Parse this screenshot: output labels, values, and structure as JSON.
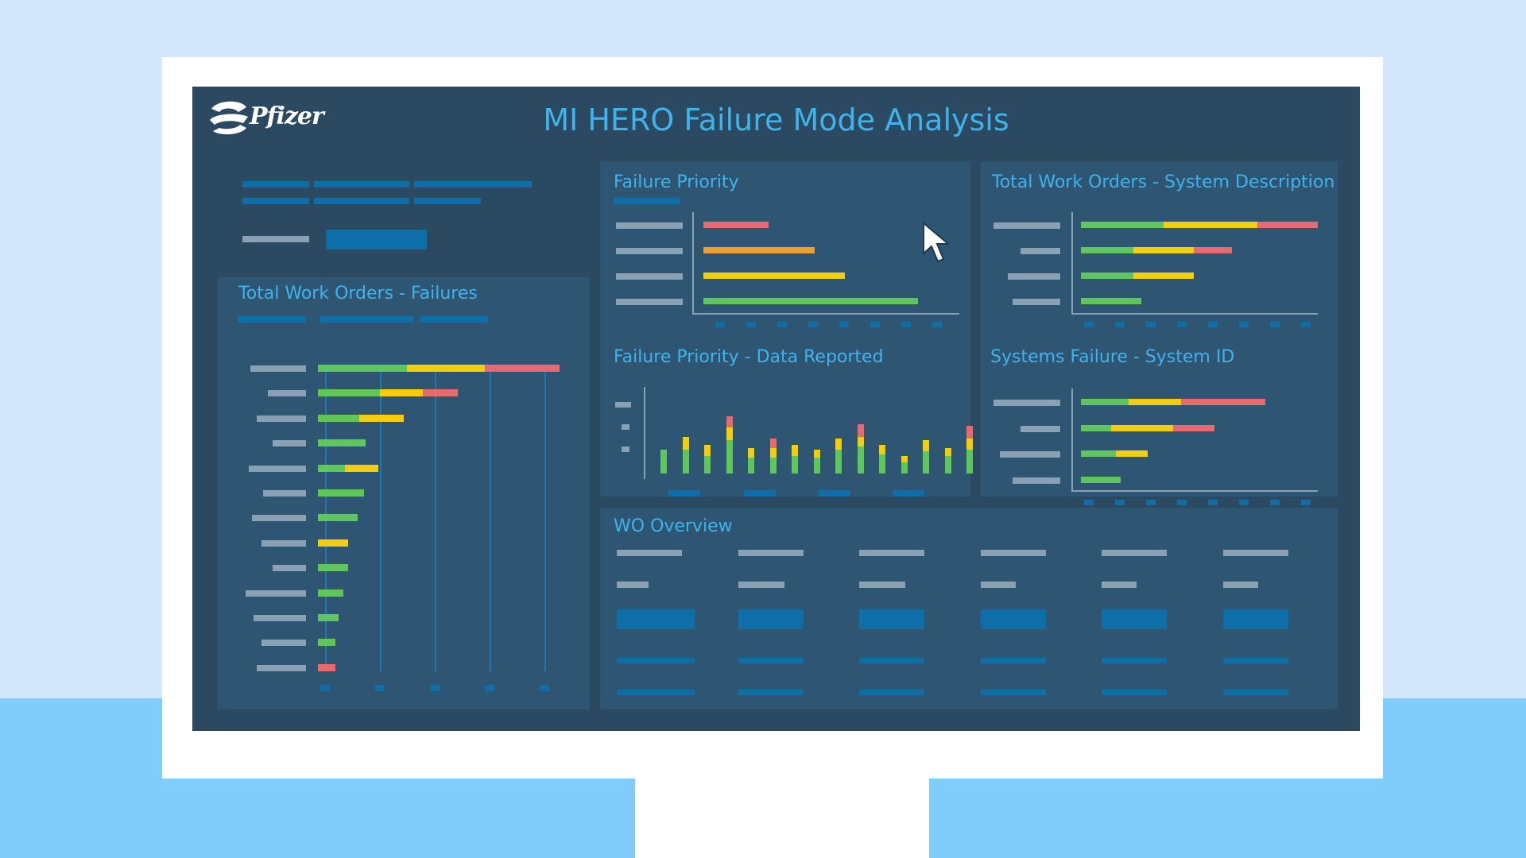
{
  "header": {
    "title": "MI HERO Failure Mode Analysis",
    "logo_text": "Pfizer"
  },
  "panels": {
    "failures": {
      "title": "Total Work Orders - Failures"
    },
    "priority": {
      "title": "Failure Priority"
    },
    "system_desc": {
      "title": "Total Work Orders - System Description"
    },
    "data_reported": {
      "title": "Failure Priority - Data Reported"
    },
    "system_id": {
      "title": "Systems Failure - System ID"
    },
    "wo_overview": {
      "title": "WO Overview"
    }
  },
  "colors": {
    "green": "#5ec65b",
    "yellow": "#f4cd0d",
    "red": "#e76b6e",
    "orange": "#f29b31",
    "placeholder_gray": "#8aa0b3",
    "accent_blue": "#0e6ea7",
    "title_blue": "#3fb3ec"
  }
}
